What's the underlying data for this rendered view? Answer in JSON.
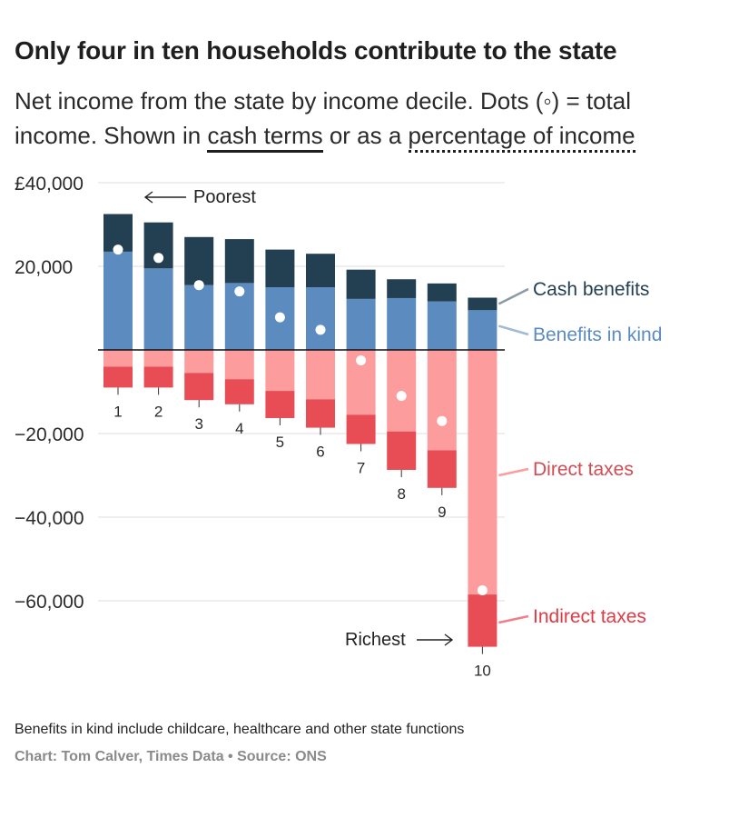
{
  "header": {
    "title": "Only four in ten households contribute to the state",
    "subtitle_pre": "Net income from the state by income decile. Dots (◦) = total income. Shown in ",
    "option_cash": "cash terms",
    "subtitle_mid": " or as a ",
    "option_pct": "percentage of income"
  },
  "chart_data": {
    "type": "bar",
    "stacked": true,
    "categories": [
      "1",
      "2",
      "3",
      "4",
      "5",
      "6",
      "7",
      "8",
      "9",
      "10"
    ],
    "series": [
      {
        "name": "Cash benefits",
        "color": "#233f52",
        "values": [
          9000,
          11000,
          11500,
          10500,
          9000,
          8000,
          7000,
          4500,
          4300,
          3000
        ]
      },
      {
        "name": "Benefits in kind",
        "color": "#5b8bbf",
        "values": [
          23500,
          19500,
          15500,
          16000,
          15000,
          15000,
          12200,
          12400,
          11600,
          9500
        ]
      },
      {
        "name": "Direct taxes",
        "color": "#fc9c9c",
        "values": [
          -4000,
          -4000,
          -5500,
          -7000,
          -9800,
          -11800,
          -15500,
          -19500,
          -24000,
          -58500
        ]
      },
      {
        "name": "Indirect taxes",
        "color": "#e84c55",
        "values": [
          -5000,
          -5000,
          -6500,
          -6000,
          -6500,
          -6800,
          -7000,
          -9200,
          -9000,
          -12500
        ]
      }
    ],
    "dots": {
      "name": "Total income",
      "values": [
        24000,
        22000,
        15500,
        14000,
        7800,
        4800,
        -2500,
        -11000,
        -17000,
        -57500
      ]
    },
    "yticks": [
      40000,
      20000,
      -20000,
      -40000,
      -60000
    ],
    "ytick_labels": [
      "£40,000",
      "20,000",
      "−20,000",
      "−40,000",
      "−60,000"
    ],
    "ylim": [
      -72000,
      42000
    ],
    "grid": true,
    "annotations": {
      "poorest": "Poorest",
      "richest": "Richest"
    },
    "legend_placement": "right, direct labels"
  },
  "footer": {
    "note": "Benefits in kind include childcare, healthcare and other state functions",
    "credit": "Chart: Tom Calver, Times Data • Source: ONS"
  }
}
